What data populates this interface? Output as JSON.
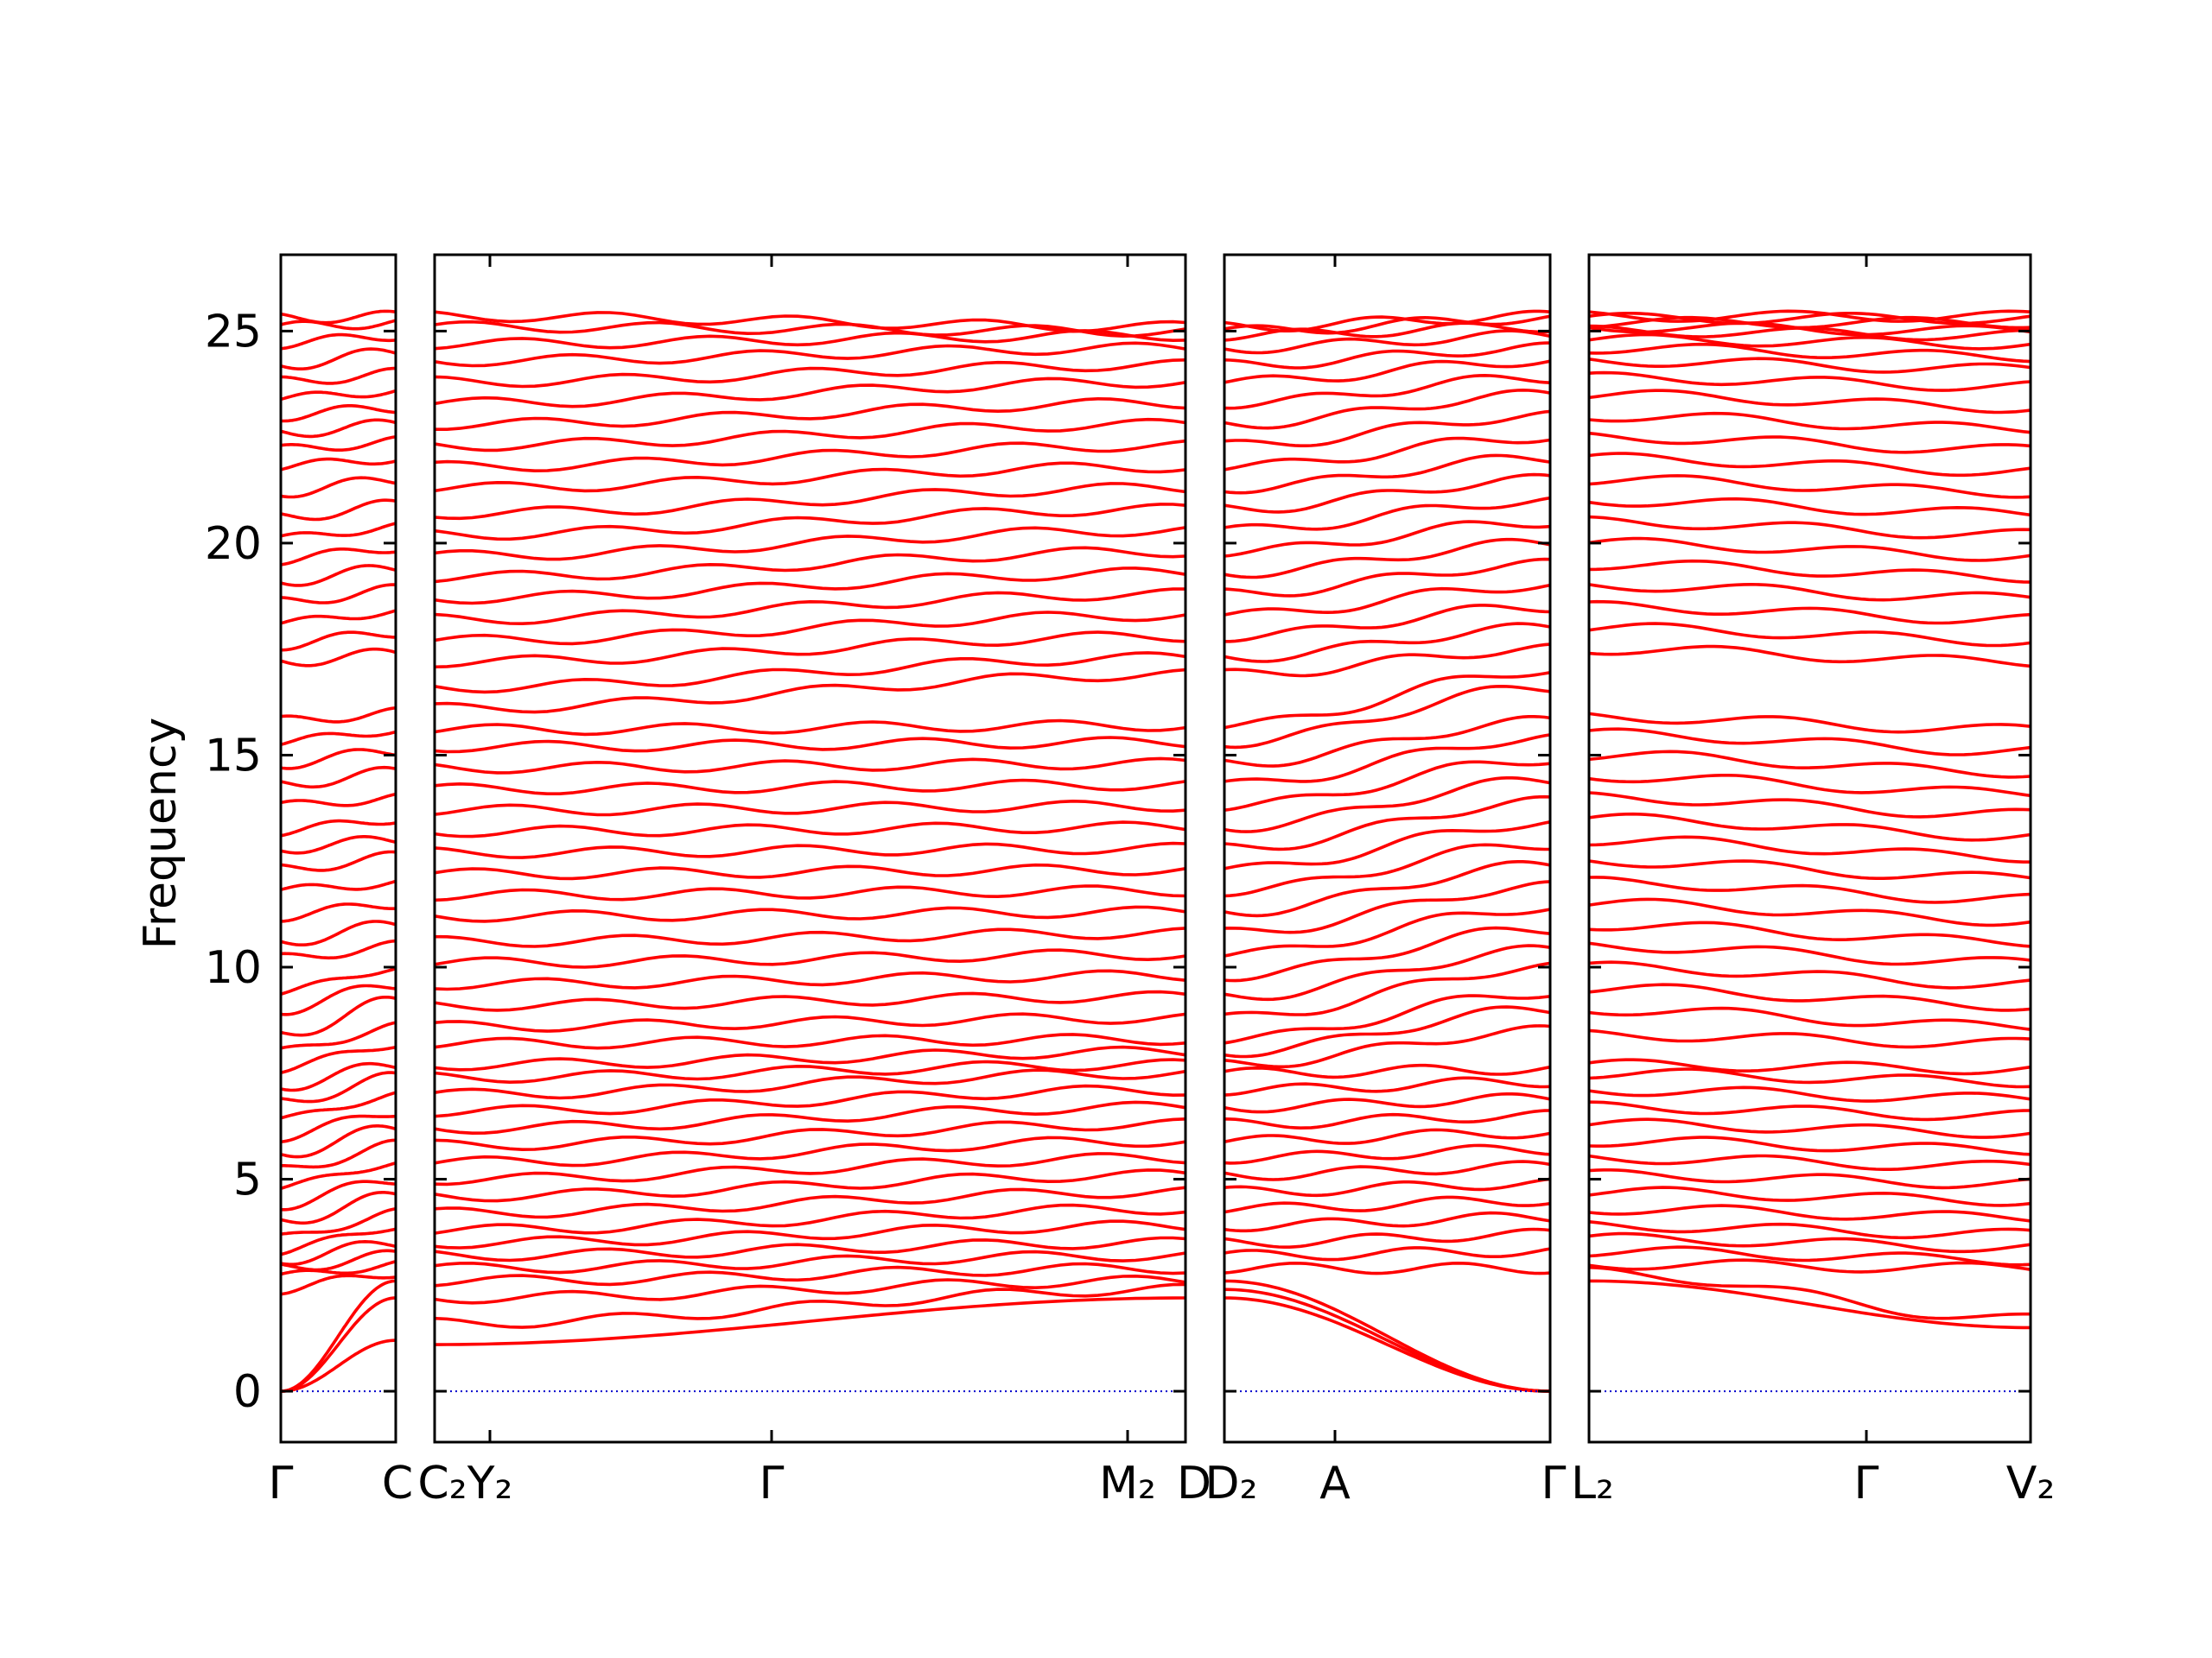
{
  "chart_data": {
    "type": "line",
    "title": "",
    "ylabel": "Frequency",
    "xlabel": "",
    "ylim": [
      -1.2,
      26.8
    ],
    "yticks": [
      0,
      5,
      10,
      15,
      20,
      25
    ],
    "grid": false,
    "legend": "none",
    "band_color": "#ff0000",
    "zero_line_color": "#0000cc",
    "panels": [
      {
        "name": "panel-1",
        "labels": [
          "Γ",
          "C"
        ],
        "band_starts": [
          0,
          0,
          0,
          2.4,
          2.7,
          2.9,
          3.1,
          3.3,
          3.6,
          4.0,
          4.4,
          4.8,
          5.2,
          5.6,
          6.0,
          6.4,
          6.8,
          7.2,
          7.6,
          8.0,
          8.4,
          9.0,
          9.4,
          10.2,
          10.6,
          11.2,
          11.8,
          12.3,
          12.8,
          13.2,
          13.8,
          14.3,
          14.8,
          15.3,
          15.8,
          17.2,
          17.6,
          18.1,
          18.6,
          19.1,
          19.6,
          20.1,
          20.6,
          21.2,
          21.8,
          22.2,
          22.6,
          23.0,
          23.4,
          23.8,
          24.2,
          24.7,
          25.1,
          25.3
        ],
        "band_ends": [
          1.2,
          2.2,
          2.6,
          2.8,
          3.0,
          3.2,
          3.5,
          3.9,
          4.2,
          4.6,
          5.0,
          5.4,
          5.8,
          6.2,
          6.6,
          7.0,
          7.4,
          7.7,
          8.2,
          8.6,
          9.2,
          9.6,
          10.0,
          10.5,
          11.0,
          11.5,
          12.0,
          12.6,
          13.0,
          13.5,
          14.0,
          14.6,
          15.1,
          15.6,
          16.0,
          17.4,
          17.9,
          18.4,
          18.9,
          19.4,
          19.9,
          20.4,
          20.9,
          21.5,
          22.0,
          22.4,
          22.8,
          23.2,
          23.6,
          24.0,
          24.5,
          24.9,
          25.2,
          25.35
        ]
      },
      {
        "name": "panel-2",
        "labels": [
          "C₂",
          "Y₂",
          "Γ",
          "M₂",
          "D"
        ],
        "band_starts": [
          1.1,
          1.6,
          2.2,
          2.6,
          2.9,
          3.2,
          3.5,
          3.8,
          4.2,
          4.6,
          5.0,
          5.4,
          5.8,
          6.2,
          6.6,
          7.0,
          7.4,
          7.7,
          8.2,
          8.6,
          9.1,
          9.6,
          10.1,
          10.6,
          11.2,
          11.7,
          12.2,
          12.7,
          13.2,
          13.7,
          14.2,
          14.7,
          15.2,
          15.6,
          16.1,
          16.6,
          17.2,
          17.7,
          18.2,
          18.7,
          19.2,
          19.7,
          20.2,
          20.7,
          21.3,
          21.8,
          22.3,
          22.8,
          23.3,
          23.8,
          24.3,
          24.7,
          25.1,
          25.35
        ],
        "band_ends": [
          2.2,
          2.4,
          2.6,
          2.9,
          3.2,
          3.5,
          3.9,
          4.3,
          4.7,
          5.1,
          5.5,
          5.9,
          6.3,
          6.7,
          7.1,
          7.5,
          7.7,
          8.0,
          8.3,
          8.8,
          9.3,
          9.8,
          10.3,
          10.8,
          11.3,
          11.8,
          12.3,
          12.8,
          13.3,
          13.8,
          14.3,
          14.8,
          15.3,
          15.7,
          16.9,
          17.3,
          17.8,
          18.3,
          18.8,
          19.3,
          19.8,
          20.3,
          20.8,
          21.3,
          21.8,
          22.3,
          22.8,
          23.3,
          23.8,
          24.2,
          24.6,
          24.9,
          25.0,
          25.1
        ]
      },
      {
        "name": "panel-3",
        "labels": [
          "D₂",
          "A",
          "Γ"
        ],
        "band_starts": [
          2.2,
          2.4,
          2.6,
          2.9,
          3.2,
          3.5,
          3.9,
          4.3,
          4.7,
          5.1,
          5.5,
          5.9,
          6.3,
          6.7,
          7.1,
          7.5,
          7.7,
          8.0,
          8.3,
          8.8,
          9.3,
          9.8,
          10.3,
          10.8,
          11.3,
          11.8,
          12.3,
          12.8,
          13.3,
          13.8,
          14.3,
          14.8,
          15.3,
          15.7,
          16.9,
          17.3,
          17.8,
          18.3,
          18.8,
          19.3,
          19.8,
          20.3,
          20.8,
          21.3,
          21.8,
          22.3,
          22.8,
          23.3,
          23.8,
          24.2,
          24.6,
          24.9,
          25.0,
          25.1
        ],
        "band_ends": [
          0,
          0,
          0,
          2.9,
          3.3,
          3.7,
          4.1,
          4.5,
          4.9,
          5.3,
          5.7,
          6.1,
          6.5,
          6.9,
          7.3,
          7.6,
          8.5,
          9.0,
          9.4,
          10.0,
          10.4,
          10.9,
          11.4,
          11.9,
          12.4,
          12.9,
          13.4,
          13.9,
          14.4,
          14.9,
          15.4,
          15.8,
          16.6,
          17.0,
          17.5,
          18.0,
          18.5,
          19.0,
          19.5,
          20.0,
          20.5,
          21.0,
          21.5,
          22.0,
          22.5,
          23.0,
          23.5,
          23.9,
          24.3,
          24.6,
          24.9,
          25.1,
          25.3,
          25.35
        ]
      },
      {
        "name": "panel-4",
        "labels": [
          "L₂",
          "Γ",
          "V₂"
        ],
        "band_starts": [
          2.6,
          2.8,
          3.0,
          3.3,
          3.6,
          3.9,
          4.3,
          4.7,
          5.1,
          5.5,
          5.9,
          6.3,
          6.7,
          7.1,
          7.5,
          7.7,
          8.4,
          9.0,
          9.5,
          10.0,
          10.5,
          11.0,
          11.5,
          12.0,
          12.5,
          13.0,
          13.5,
          14.0,
          14.5,
          15.0,
          15.5,
          15.9,
          17.5,
          18.0,
          18.5,
          19.0,
          19.5,
          20.0,
          20.5,
          21.0,
          21.5,
          22.0,
          22.5,
          23.0,
          23.5,
          23.9,
          24.3,
          24.6,
          24.8,
          25.0,
          25.1,
          25.2,
          25.3,
          25.35
        ],
        "band_ends": [
          1.5,
          1.7,
          2.9,
          3.1,
          3.4,
          3.7,
          4.1,
          4.5,
          4.9,
          5.3,
          5.7,
          6.1,
          6.5,
          6.9,
          7.3,
          7.6,
          8.2,
          8.6,
          9.1,
          9.6,
          10.1,
          10.6,
          11.1,
          11.6,
          12.1,
          12.6,
          13.1,
          13.6,
          14.1,
          14.6,
          15.1,
          15.6,
          17.2,
          17.7,
          18.2,
          18.7,
          19.2,
          19.7,
          20.2,
          20.7,
          21.2,
          21.7,
          22.2,
          22.7,
          23.2,
          23.7,
          24.1,
          24.4,
          24.7,
          24.9,
          25.0,
          25.2,
          25.3,
          25.35
        ]
      }
    ]
  }
}
